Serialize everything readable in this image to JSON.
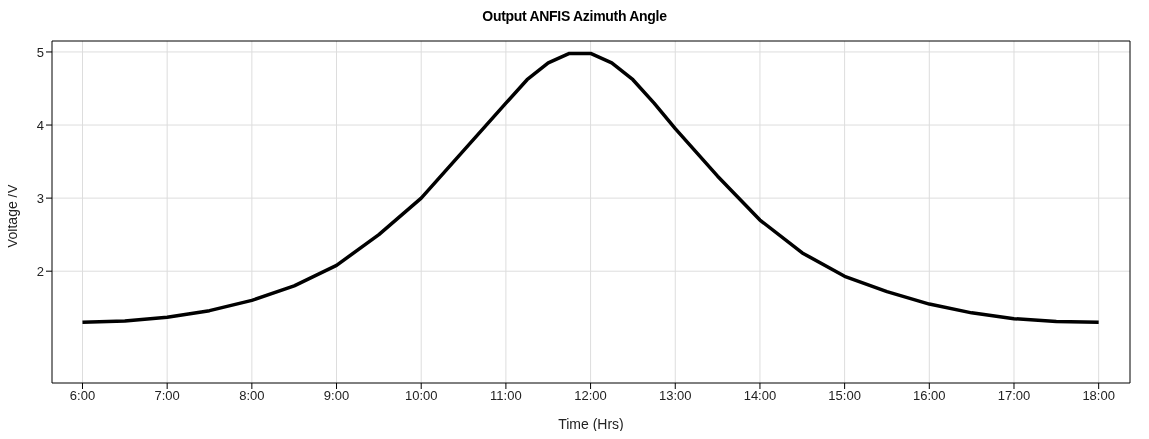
{
  "chart_data": {
    "type": "line",
    "title": "Output ANFIS Azimuth Angle",
    "xlabel": "Time (Hrs)",
    "ylabel": "Voltage /V",
    "x": [
      6,
      6.5,
      7,
      7.5,
      8,
      8.5,
      9,
      9.5,
      10,
      10.5,
      11,
      11.25,
      11.5,
      11.75,
      12,
      12.25,
      12.5,
      12.75,
      13,
      13.5,
      14,
      14.5,
      15,
      15.5,
      16,
      16.5,
      17,
      17.5,
      18
    ],
    "series": [
      {
        "color": "#000000",
        "values": [
          1.3,
          1.32,
          1.37,
          1.46,
          1.6,
          1.8,
          2.08,
          2.5,
          3.0,
          3.65,
          4.3,
          4.62,
          4.85,
          4.98,
          4.98,
          4.85,
          4.62,
          4.3,
          3.95,
          3.3,
          2.7,
          2.25,
          1.93,
          1.72,
          1.55,
          1.43,
          1.35,
          1.31,
          1.3
        ]
      }
    ],
    "xlim": [
      5.64,
      18.37
    ],
    "ylim": [
      0.47,
      5.15
    ],
    "xticks": [
      {
        "value": 6,
        "label": "6:00"
      },
      {
        "value": 7,
        "label": "7:00"
      },
      {
        "value": 8,
        "label": "8:00"
      },
      {
        "value": 9,
        "label": "9:00"
      },
      {
        "value": 10,
        "label": "10:00"
      },
      {
        "value": 11,
        "label": "11:00"
      },
      {
        "value": 12,
        "label": "12:00"
      },
      {
        "value": 13,
        "label": "13:00"
      },
      {
        "value": 14,
        "label": "14:00"
      },
      {
        "value": 15,
        "label": "15:00"
      },
      {
        "value": 16,
        "label": "16:00"
      },
      {
        "value": 17,
        "label": "17:00"
      },
      {
        "value": 18,
        "label": "18:00"
      }
    ],
    "yticks": [
      2,
      3,
      4,
      5
    ],
    "grid": true,
    "line_style": "solid"
  }
}
